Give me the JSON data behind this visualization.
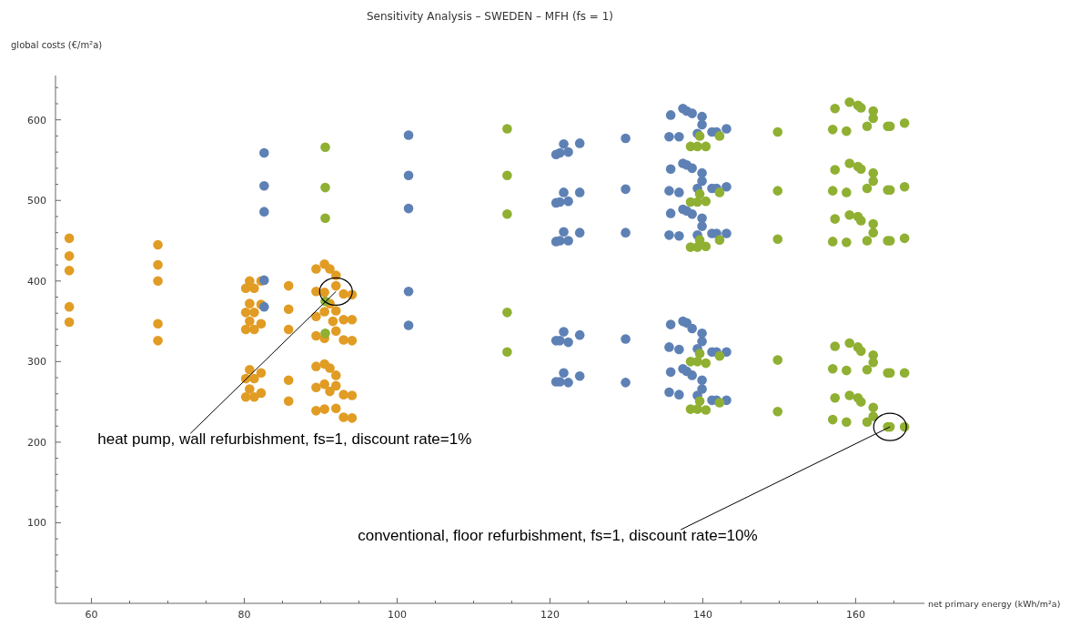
{
  "chart_data": {
    "type": "scatter",
    "title": "Sensitivity Analysis – SWEDEN – MFH (fs = 1)",
    "xlabel": "net primary energy (kWh/m²a)",
    "ylabel": "global costs (€/m²a)",
    "xlim": [
      55.3,
      169
    ],
    "ylim": [
      0,
      655
    ],
    "xticks": [
      60,
      {
        "value": 65,
        "label": null
      },
      {
        "value": 70,
        "label": null
      },
      {
        "value": 75,
        "label": null
      },
      80,
      {
        "value": 85,
        "label": null
      },
      {
        "value": 90,
        "label": null
      },
      {
        "value": 95,
        "label": null
      },
      100,
      {
        "value": 105,
        "label": null
      },
      {
        "value": 110,
        "label": null
      },
      {
        "value": 115,
        "label": null
      },
      120,
      {
        "value": 125,
        "label": null
      },
      {
        "value": 130,
        "label": null
      },
      {
        "value": 135,
        "label": null
      },
      140,
      {
        "value": 145,
        "label": null
      },
      {
        "value": 150,
        "label": null
      },
      {
        "value": 155,
        "label": null
      },
      160,
      {
        "value": 165,
        "label": null
      }
    ],
    "yticks": [
      {
        "value": 20,
        "label": null
      },
      {
        "value": 40,
        "label": null
      },
      {
        "value": 60,
        "label": null
      },
      {
        "value": 80,
        "label": null
      },
      100,
      {
        "value": 120,
        "label": null
      },
      {
        "value": 140,
        "label": null
      },
      {
        "value": 160,
        "label": null
      },
      {
        "value": 180,
        "label": null
      },
      200,
      {
        "value": 220,
        "label": null
      },
      {
        "value": 240,
        "label": null
      },
      {
        "value": 260,
        "label": null
      },
      {
        "value": 280,
        "label": null
      },
      300,
      {
        "value": 320,
        "label": null
      },
      {
        "value": 340,
        "label": null
      },
      {
        "value": 360,
        "label": null
      },
      {
        "value": 380,
        "label": null
      },
      400,
      {
        "value": 420,
        "label": null
      },
      {
        "value": 440,
        "label": null
      },
      {
        "value": 460,
        "label": null
      },
      {
        "value": 480,
        "label": null
      },
      500,
      {
        "value": 520,
        "label": null
      },
      {
        "value": 540,
        "label": null
      },
      {
        "value": 560,
        "label": null
      },
      {
        "value": 580,
        "label": null
      },
      600,
      {
        "value": 620,
        "label": null
      },
      {
        "value": 640,
        "label": null
      }
    ],
    "grid": false,
    "marker": "circle",
    "series": [
      {
        "color": "#e19c24",
        "x": [
          57.1,
          57.1,
          57.1,
          57.1,
          57.1,
          68.7,
          68.7,
          68.7,
          68.7,
          68.7,
          80.7,
          80.2,
          81.3,
          82.2,
          80.7,
          80.2,
          81.3,
          82.2,
          80.7,
          80.2,
          81.3,
          82.2,
          80.7,
          80.2,
          81.3,
          82.2,
          80.7,
          80.2,
          81.3,
          82.2,
          85.8,
          85.8,
          85.8,
          85.8,
          85.8,
          89.4,
          90.5,
          91.2,
          92.0,
          89.4,
          90.5,
          92.0,
          93.0,
          94.1,
          89.4,
          90.5,
          92.0,
          93.0,
          94.1,
          89.4,
          90.5,
          92.0,
          93.0,
          94.1,
          91.6,
          91.2,
          89.4,
          90.5,
          91.2,
          92.0,
          89.4,
          90.5,
          92.0,
          93.0,
          94.1,
          89.4,
          90.5,
          92.0,
          93.0,
          94.1,
          91.2
        ],
        "values": [
          453,
          431,
          413,
          368,
          349,
          445,
          420,
          400,
          347,
          326,
          400,
          391,
          391,
          400,
          372,
          361,
          361,
          371,
          350,
          340,
          340,
          347,
          290,
          279,
          279,
          286,
          266,
          256,
          256,
          261,
          394,
          365,
          340,
          277,
          251,
          415,
          421,
          415,
          407,
          387,
          386,
          394,
          384,
          383,
          356,
          362,
          363,
          352,
          352,
          332,
          329,
          338,
          327,
          326,
          350,
          372,
          294,
          297,
          292,
          283,
          268,
          272,
          270,
          259,
          258,
          239,
          241,
          242,
          231,
          230,
          263
        ]
      },
      {
        "color": "#5e81b5",
        "x": [
          82.6,
          82.6,
          82.6,
          82.6,
          82.6,
          101.5,
          101.5,
          101.5,
          101.5,
          101.5,
          120.8,
          121.3,
          121.8,
          122.4,
          123.9,
          120.8,
          121.3,
          121.8,
          122.4,
          123.9,
          120.8,
          121.3,
          121.8,
          122.4,
          123.9,
          120.8,
          121.3,
          121.8,
          122.4,
          123.9,
          120.8,
          121.3,
          121.8,
          122.4,
          123.9,
          129.9,
          129.9,
          129.9,
          129.9,
          129.9,
          135.8,
          137.4,
          137.9,
          138.6,
          139.9,
          139.9,
          139.3,
          135.6,
          136.9,
          141.2,
          141.8,
          143.1,
          135.8,
          137.4,
          137.9,
          138.6,
          139.9,
          139.9,
          139.3,
          135.6,
          136.9,
          141.2,
          141.8,
          143.1,
          135.8,
          137.4,
          137.9,
          138.6,
          139.9,
          139.9,
          139.3,
          135.6,
          136.9,
          141.2,
          141.8,
          143.1,
          135.8,
          137.4,
          137.9,
          138.6,
          139.9,
          139.9,
          139.3,
          135.6,
          136.9,
          141.2,
          141.8,
          143.1,
          135.8,
          137.4,
          137.9,
          138.6,
          139.9,
          139.9,
          139.3,
          135.6,
          136.9,
          141.2,
          141.8,
          143.1
        ],
        "values": [
          559,
          518,
          486,
          401,
          368,
          581,
          531,
          490,
          387,
          345,
          557,
          559,
          570,
          560,
          571,
          497,
          498,
          510,
          499,
          510,
          449,
          450,
          461,
          450,
          460,
          326,
          326,
          337,
          324,
          333,
          275,
          275,
          286,
          274,
          282,
          577,
          514,
          460,
          328,
          274,
          606,
          614,
          611,
          608,
          604,
          594,
          583,
          579,
          579,
          585,
          585,
          589,
          539,
          546,
          544,
          540,
          534,
          524,
          515,
          512,
          510,
          515,
          515,
          517,
          484,
          489,
          487,
          483,
          478,
          468,
          457,
          457,
          456,
          459,
          459,
          459,
          346,
          350,
          348,
          341,
          335,
          325,
          316,
          318,
          315,
          312,
          312,
          312,
          287,
          291,
          288,
          283,
          277,
          266,
          258,
          262,
          259,
          252,
          252,
          252
        ]
      },
      {
        "color": "#8fb032",
        "x": [
          90.6,
          90.6,
          90.6,
          90.6,
          90.6,
          114.4,
          114.4,
          114.4,
          114.4,
          114.4,
          139.6,
          138.4,
          139.3,
          140.4,
          142.2,
          139.6,
          138.4,
          139.3,
          140.4,
          142.2,
          139.6,
          138.4,
          139.3,
          140.4,
          142.2,
          139.6,
          138.4,
          139.3,
          140.4,
          142.2,
          139.6,
          138.4,
          139.3,
          140.4,
          142.2,
          149.8,
          149.8,
          149.8,
          149.8,
          149.8,
          157.3,
          159.2,
          160.3,
          160.7,
          162.3,
          162.3,
          161.5,
          157.0,
          158.8,
          164.2,
          164.5,
          166.4,
          157.3,
          159.2,
          160.3,
          160.7,
          162.3,
          162.3,
          161.5,
          157.0,
          158.8,
          164.2,
          164.5,
          166.4,
          157.3,
          159.2,
          160.3,
          160.7,
          162.3,
          162.3,
          161.5,
          157.0,
          158.8,
          164.2,
          164.5,
          166.4,
          157.3,
          159.2,
          160.3,
          160.7,
          162.3,
          162.3,
          161.5,
          157.0,
          158.8,
          164.2,
          164.5,
          166.4,
          157.3,
          159.2,
          160.3,
          160.7,
          162.3,
          162.3,
          161.5,
          157.0,
          158.8,
          164.2,
          164.5,
          166.4
        ],
        "values": [
          566,
          516,
          478,
          375,
          335,
          589,
          531,
          483,
          361,
          312,
          580,
          567,
          567,
          567,
          580,
          508,
          498,
          498,
          499,
          510,
          451,
          442,
          442,
          443,
          451,
          310,
          300,
          300,
          298,
          307,
          251,
          241,
          241,
          240,
          249,
          585,
          512,
          452,
          302,
          238,
          614,
          622,
          618,
          615,
          611,
          602,
          592,
          588,
          586,
          592,
          592,
          596,
          538,
          546,
          542,
          539,
          534,
          524,
          515,
          512,
          510,
          513,
          513,
          517,
          477,
          482,
          480,
          475,
          471,
          460,
          450,
          449,
          448,
          450,
          450,
          453,
          319,
          323,
          318,
          313,
          308,
          299,
          290,
          291,
          289,
          286,
          286,
          286,
          255,
          258,
          255,
          250,
          243,
          232,
          225,
          228,
          225,
          219,
          219,
          219
        ]
      }
    ],
    "annotations": [
      {
        "text": "heat pump, wall refurbishment, fs=1, discount rate=1%",
        "x": 92,
        "y": 387
      },
      {
        "text": "conventional, floor refurbishment, fs=1, discount rate=10%",
        "x": 164.5,
        "y": 219
      }
    ]
  }
}
